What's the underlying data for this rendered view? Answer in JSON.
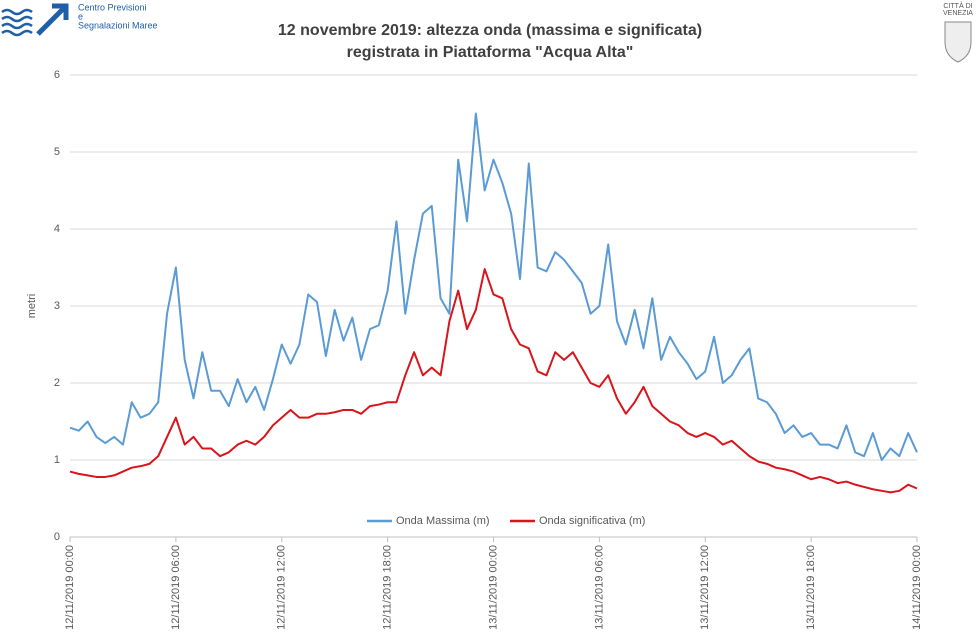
{
  "header": {
    "logo_lines": [
      "Centro Previsioni",
      "e",
      "Segnalazioni Maree"
    ],
    "right_logo": [
      "CITTÀ DI",
      "VENEZIA"
    ]
  },
  "chart_data": {
    "type": "line",
    "title": "12 novembre 2019: altezza onda (massima e significata)",
    "subtitle": "registrata in Piattaforma \"Acqua Alta\"",
    "y_label": "metri",
    "x": [
      0,
      0.5,
      1,
      1.5,
      2,
      2.5,
      3,
      3.5,
      4,
      4.5,
      5,
      5.5,
      6,
      6.5,
      7,
      7.5,
      8,
      8.5,
      9,
      9.5,
      10,
      10.5,
      11,
      11.5,
      12,
      12.5,
      13,
      13.5,
      14,
      14.5,
      15,
      15.5,
      16,
      16.5,
      17,
      17.5,
      18,
      18.5,
      19,
      19.5,
      20,
      20.5,
      21,
      21.5,
      22,
      22.5,
      23,
      23.5,
      24,
      24.5,
      25,
      25.5,
      26,
      26.5,
      27,
      27.5,
      28,
      28.5,
      29,
      29.5,
      30,
      30.5,
      31,
      31.5,
      32,
      32.5,
      33,
      33.5,
      34,
      34.5,
      35,
      35.5,
      36,
      36.5,
      37,
      37.5,
      38,
      38.5,
      39,
      39.5,
      40,
      40.5,
      41,
      41.5,
      42,
      42.5,
      43,
      43.5,
      44,
      44.5,
      45,
      45.5,
      46,
      46.5,
      47,
      47.5,
      48
    ],
    "series": [
      {
        "name": "Onda Massima (m)",
        "color": "#5b9bd5",
        "values": [
          1.42,
          1.38,
          1.5,
          1.3,
          1.22,
          1.3,
          1.2,
          1.75,
          1.55,
          1.6,
          1.75,
          2.9,
          3.5,
          2.3,
          1.8,
          2.4,
          1.9,
          1.9,
          1.7,
          2.05,
          1.75,
          1.95,
          1.65,
          2.05,
          2.5,
          2.25,
          2.5,
          3.15,
          3.05,
          2.35,
          2.95,
          2.55,
          2.85,
          2.3,
          2.7,
          2.75,
          3.2,
          4.1,
          2.9,
          3.6,
          4.2,
          4.3,
          3.1,
          2.9,
          4.9,
          4.1,
          5.5,
          4.5,
          4.9,
          4.6,
          4.2,
          3.35,
          4.85,
          3.5,
          3.45,
          3.7,
          3.6,
          3.45,
          3.3,
          2.9,
          3.0,
          3.8,
          2.8,
          2.5,
          2.95,
          2.45,
          3.1,
          2.3,
          2.6,
          2.4,
          2.25,
          2.05,
          2.15,
          2.6,
          2.0,
          2.1,
          2.3,
          2.45,
          1.8,
          1.75,
          1.6,
          1.35,
          1.45,
          1.3,
          1.35,
          1.2,
          1.2,
          1.15,
          1.45,
          1.1,
          1.05,
          1.35,
          1.0,
          1.15,
          1.05,
          1.35,
          1.1
        ]
      },
      {
        "name": "Onda significativa (m)",
        "color": "#d9141b",
        "values": [
          0.85,
          0.82,
          0.8,
          0.78,
          0.78,
          0.8,
          0.85,
          0.9,
          0.92,
          0.95,
          1.05,
          1.3,
          1.55,
          1.2,
          1.3,
          1.15,
          1.15,
          1.05,
          1.1,
          1.2,
          1.25,
          1.2,
          1.3,
          1.45,
          1.55,
          1.65,
          1.55,
          1.55,
          1.6,
          1.6,
          1.62,
          1.65,
          1.65,
          1.6,
          1.7,
          1.72,
          1.75,
          1.75,
          2.1,
          2.4,
          2.1,
          2.2,
          2.1,
          2.8,
          3.2,
          2.7,
          2.95,
          3.48,
          3.15,
          3.1,
          2.7,
          2.5,
          2.45,
          2.15,
          2.1,
          2.4,
          2.3,
          2.4,
          2.2,
          2.0,
          1.95,
          2.1,
          1.8,
          1.6,
          1.75,
          1.95,
          1.7,
          1.6,
          1.5,
          1.45,
          1.35,
          1.3,
          1.35,
          1.3,
          1.2,
          1.25,
          1.15,
          1.05,
          0.98,
          0.95,
          0.9,
          0.88,
          0.85,
          0.8,
          0.75,
          0.78,
          0.75,
          0.7,
          0.72,
          0.68,
          0.65,
          0.62,
          0.6,
          0.58,
          0.6,
          0.68,
          0.63
        ]
      }
    ],
    "xlim": [
      0,
      48
    ],
    "xticks": [
      {
        "value": 0,
        "label": "12/11/2019 00:00"
      },
      {
        "value": 6,
        "label": "12/11/2019 06:00"
      },
      {
        "value": 12,
        "label": "12/11/2019 12:00"
      },
      {
        "value": 18,
        "label": "12/11/2019 18:00"
      },
      {
        "value": 24,
        "label": "13/11/2019 00:00"
      },
      {
        "value": 30,
        "label": "13/11/2019 06:00"
      },
      {
        "value": 36,
        "label": "13/11/2019 12:00"
      },
      {
        "value": 42,
        "label": "13/11/2019 18:00"
      },
      {
        "value": 48,
        "label": "14/11/2019 00:00"
      }
    ],
    "ylim": [
      0,
      6
    ],
    "yticks": [
      0,
      1,
      2,
      3,
      4,
      5,
      6
    ],
    "grid": true,
    "legend": "bottom"
  }
}
